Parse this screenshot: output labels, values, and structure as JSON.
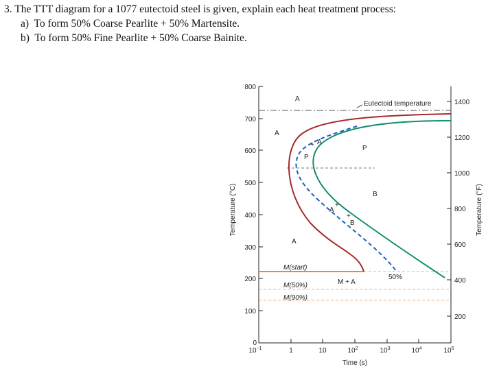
{
  "question": {
    "number": "3.",
    "prompt": "The TTT diagram for a 1077 eutectoid steel is given, explain each heat treatment process:",
    "parts": [
      {
        "letter": "a)",
        "text": "To form 50% Coarse Pearlite + 50% Martensite."
      },
      {
        "letter": "b)",
        "text": "To form 50% Fine Pearlite + 50% Coarse Bainite."
      }
    ]
  },
  "diagram": {
    "x_axis_label": "Time (s)",
    "y_axis_left_label": "Temperature (°C)",
    "y_axis_right_label": "Temperature (°F)",
    "x_ticks": [
      {
        "base": "10",
        "exp": "−1"
      },
      {
        "base": "1",
        "exp": ""
      },
      {
        "base": "10",
        "exp": ""
      },
      {
        "base": "10",
        "exp": "2"
      },
      {
        "base": "10",
        "exp": "3"
      },
      {
        "base": "10",
        "exp": "4"
      },
      {
        "base": "10",
        "exp": "5"
      }
    ],
    "y_ticks_c": [
      "800",
      "700",
      "600",
      "500",
      "400",
      "300",
      "200",
      "100",
      "0"
    ],
    "y_ticks_f": [
      "1400",
      "1200",
      "1000",
      "800",
      "600",
      "400",
      "200"
    ],
    "labels": {
      "eutectoid": "Eutectoid temperature",
      "A_top": "A",
      "A_left": "A",
      "A_lower": "A",
      "P_region": "P",
      "B_region": "B",
      "P_small": "P",
      "A_small": "A",
      "A_mid": "A",
      "B_small": "B",
      "pct50": "50%",
      "MA": "M + A",
      "Mstart": "M(start)",
      "M50": "M(50%)",
      "M90": "M(90%)"
    },
    "colors": {
      "start_curve": "#a52a2a",
      "finish_curve": "#0f8f6f",
      "fifty_curve": "#1f5fbf",
      "m_start": "#f08a1c",
      "m_dashed": "#f2b183",
      "eutectoid_line": "#555555"
    }
  }
}
